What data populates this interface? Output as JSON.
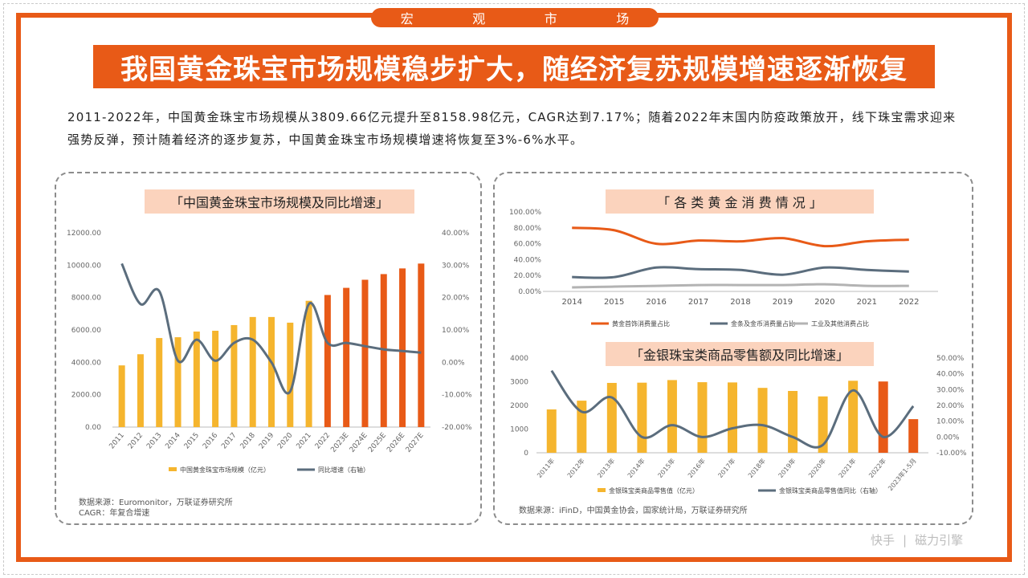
{
  "section_tab": [
    "宏",
    "观",
    "市",
    "场"
  ],
  "headline": "我国黄金珠宝市场规模稳步扩大，随经济复苏规模增速逐渐恢复",
  "intro": "2011-2022年，中国黄金珠宝市场规模从3809.66亿元提升至8158.98亿元，CAGR达到7.17%；随着2022年末国内防疫政策放开，线下珠宝需求迎来强势反弹，预计随着经济的逐步复苏，中国黄金珠宝市场规模增速将恢复至3%-6%水平。",
  "colors": {
    "accent": "#e85a17",
    "bar_yellow": "#f5b52e",
    "bar_orange": "#e85a17",
    "line_slate": "#5b6d7d",
    "line_gray": "#b3b3b3"
  },
  "footer_logos": [
    "快手",
    "磁力引擎"
  ],
  "chart_data": [
    {
      "type": "bar",
      "title": "「中国黄金珠宝市场规模及同比增速」",
      "categories": [
        "2011",
        "2012",
        "2013",
        "2014",
        "2015",
        "2016",
        "2017",
        "2018",
        "2019",
        "2020",
        "2021",
        "2022",
        "2023E",
        "2024E",
        "2025E",
        "2026E",
        "2027E"
      ],
      "y_ticks": [
        "12000.00",
        "10000.00",
        "8000.00",
        "6000.00",
        "4000.00",
        "2000.00",
        "0.00"
      ],
      "y2_ticks": [
        "40.00%",
        "30.00%",
        "20.00%",
        "10.00%",
        "0.00%",
        "-10.00%",
        "-20.00%"
      ],
      "ylim": [
        0,
        12000
      ],
      "y2lim": [
        -20,
        40
      ],
      "series": [
        {
          "name": "中国黄金珠宝市场规模（亿元）",
          "kind": "bar",
          "values": [
            3810,
            4500,
            5500,
            5550,
            5900,
            5950,
            6300,
            6800,
            6800,
            6450,
            7800,
            8159,
            8600,
            9100,
            9450,
            9800,
            10100
          ]
        },
        {
          "name": "同比增速（右轴）",
          "kind": "line",
          "axis": "right",
          "values": [
            30.5,
            18.0,
            22.0,
            0.5,
            7.0,
            0.5,
            6.0,
            7.0,
            0,
            -9.0,
            18.0,
            6.0,
            6.0,
            5.0,
            4.0,
            3.5,
            3.0
          ]
        }
      ],
      "source": [
        "数据来源：Euromonitor，万联证券研究所",
        "CAGR：年复合增速"
      ]
    },
    {
      "type": "line",
      "title": "「 各 类 黄 金 消 费 情 况 」",
      "x": [
        "2014",
        "2015",
        "2016",
        "2017",
        "2018",
        "2019",
        "2020",
        "2021",
        "2022"
      ],
      "y_ticks": [
        "100.00%",
        "80.00%",
        "60.00%",
        "40.00%",
        "20.00%",
        "0.00%"
      ],
      "ylim": [
        0,
        100
      ],
      "series": [
        {
          "name": "黄金首饰消费量占比",
          "values": [
            80,
            77,
            60,
            64,
            63,
            67,
            57,
            63,
            65
          ]
        },
        {
          "name": "金条及金币消费量占比",
          "values": [
            18,
            18,
            30,
            28,
            27,
            21,
            30,
            27,
            25
          ]
        },
        {
          "name": "工业及其他消费占比",
          "values": [
            5,
            6,
            7,
            8,
            8,
            8,
            9,
            7,
            7
          ]
        }
      ]
    },
    {
      "type": "bar",
      "title": "「金银珠宝类商品零售额及同比增速」",
      "categories": [
        "2011年",
        "2012年",
        "2013年",
        "2014年",
        "2015年",
        "2016年",
        "2017年",
        "2018年",
        "2019年",
        "2020年",
        "2021年",
        "2022年",
        "2023年1-5月"
      ],
      "y_ticks": [
        "4000",
        "3000",
        "2000",
        "1000",
        "0"
      ],
      "y2_ticks": [
        "50.00%",
        "40.00%",
        "30.00%",
        "20.00%",
        "10.00%",
        "0.00%",
        "-10.00%"
      ],
      "ylim": [
        0,
        4000
      ],
      "y2lim": [
        -10,
        50
      ],
      "series": [
        {
          "name": "金银珠宝类商品零售值（亿元）",
          "kind": "bar",
          "values": [
            1830,
            2200,
            2950,
            2960,
            3070,
            2980,
            2970,
            2740,
            2610,
            2380,
            3040,
            3010,
            1420
          ]
        },
        {
          "name": "金银珠宝类商品零售值同比（右轴）",
          "kind": "line",
          "axis": "right",
          "values": [
            42,
            16,
            25,
            0,
            7.5,
            0,
            5.5,
            7.5,
            0,
            -5,
            29.5,
            0,
            19.5
          ]
        }
      ],
      "source": [
        "数据来源：iFinD，中国黄金协会，国家统计局，万联证券研究所"
      ]
    }
  ]
}
